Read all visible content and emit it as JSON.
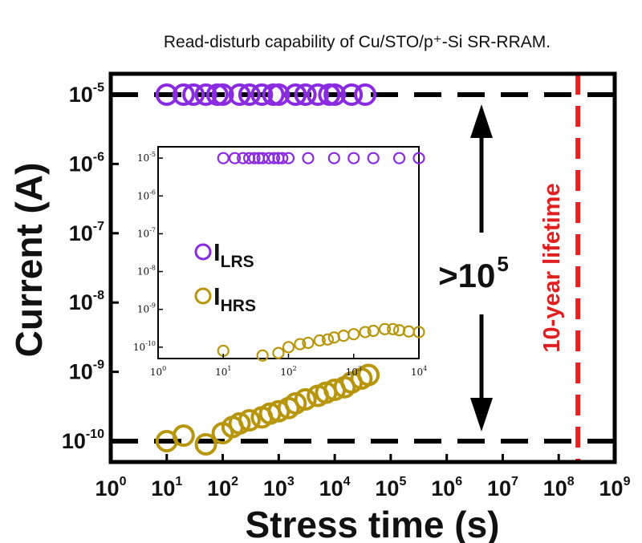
{
  "caption": "Read-disturb capability of Cu/STO/p⁺-Si SR-RRAM.",
  "chart_data": {
    "type": "scatter",
    "title": "",
    "xlabel": "Stress time (s)",
    "ylabel": "Current (A)",
    "xscale": "log",
    "yscale": "log",
    "xlim": [
      1,
      1000000000
    ],
    "ylim": [
      5e-11,
      2e-05
    ],
    "x_ticks": [
      {
        "base": "10",
        "exp": "0"
      },
      {
        "base": "10",
        "exp": "1"
      },
      {
        "base": "10",
        "exp": "2"
      },
      {
        "base": "10",
        "exp": "3"
      },
      {
        "base": "10",
        "exp": "4"
      },
      {
        "base": "10",
        "exp": "5"
      },
      {
        "base": "10",
        "exp": "6"
      },
      {
        "base": "10",
        "exp": "7"
      },
      {
        "base": "10",
        "exp": "8"
      },
      {
        "base": "10",
        "exp": "9"
      }
    ],
    "y_ticks": [
      {
        "base": "10",
        "exp": "-5"
      },
      {
        "base": "10",
        "exp": "-6"
      },
      {
        "base": "10",
        "exp": "-7"
      },
      {
        "base": "10",
        "exp": "-8"
      },
      {
        "base": "10",
        "exp": "-9"
      },
      {
        "base": "10",
        "exp": "-10"
      }
    ],
    "series": [
      {
        "name": "LRS",
        "color": "#8a2be2",
        "x": [
          10,
          20,
          30,
          50,
          80,
          100,
          200,
          300,
          500,
          800,
          1000,
          2000,
          3000,
          5000,
          8000,
          10000,
          20000,
          35000
        ],
        "y": [
          1e-05,
          1e-05,
          1e-05,
          1e-05,
          1e-05,
          1e-05,
          1e-05,
          1e-05,
          1e-05,
          1e-05,
          1e-05,
          1e-05,
          1e-05,
          1e-05,
          1e-05,
          1e-05,
          1e-05,
          1e-05
        ]
      },
      {
        "name": "HRS",
        "color": "#b8960c",
        "x": [
          10,
          20,
          50,
          100,
          150,
          200,
          300,
          500,
          700,
          1000,
          1500,
          2000,
          3000,
          5000,
          7000,
          10000,
          15000,
          20000,
          30000,
          40000
        ],
        "y": [
          1e-10,
          1.2e-10,
          9e-11,
          1.3e-10,
          1.6e-10,
          1.8e-10,
          2e-10,
          2.2e-10,
          2.5e-10,
          2.7e-10,
          3e-10,
          3.5e-10,
          4e-10,
          4.5e-10,
          5e-10,
          5.5e-10,
          6e-10,
          7e-10,
          8e-10,
          9e-10
        ]
      }
    ],
    "reference_lines": {
      "upper_level": 1e-05,
      "lower_level": 1e-10,
      "lifetime_x": 220000000
    },
    "annotations": {
      "ratio_base": ">10",
      "ratio_exp": "5",
      "lifetime": "10-year lifetime"
    },
    "inset": {
      "xlim": [
        1,
        10000
      ],
      "ylim": [
        5e-11,
        2e-05
      ],
      "x_ticks": [
        {
          "base": "10",
          "exp": "0"
        },
        {
          "base": "10",
          "exp": "1"
        },
        {
          "base": "10",
          "exp": "2"
        },
        {
          "base": "10",
          "exp": "3"
        },
        {
          "base": "10",
          "exp": "4"
        }
      ],
      "y_ticks": [
        {
          "base": "10",
          "exp": "-5"
        },
        {
          "base": "10",
          "exp": "-6"
        },
        {
          "base": "10",
          "exp": "-7"
        },
        {
          "base": "10",
          "exp": "-8"
        },
        {
          "base": "10",
          "exp": "-9"
        },
        {
          "base": "10",
          "exp": "-10"
        }
      ],
      "legend": [
        {
          "base": "I",
          "sub": "LRS",
          "color": "#8a2be2"
        },
        {
          "base": "I",
          "sub": "HRS",
          "color": "#b8960c"
        }
      ],
      "lrs_x": [
        10,
        15,
        20,
        25,
        30,
        35,
        40,
        50,
        60,
        70,
        80,
        100,
        200,
        500,
        1000,
        2000,
        5000,
        10000
      ],
      "hrs_x": [
        10,
        40,
        70,
        100,
        150,
        200,
        300,
        400,
        500,
        700,
        1000,
        1500,
        2000,
        3000,
        4000,
        5000,
        7000,
        10000
      ],
      "hrs_y": [
        8e-11,
        6e-11,
        7e-11,
        1e-10,
        1.2e-10,
        1.3e-10,
        1.5e-10,
        1.6e-10,
        1.8e-10,
        2e-10,
        2.2e-10,
        2.5e-10,
        2.7e-10,
        3e-10,
        3e-10,
        2.8e-10,
        2.6e-10,
        2.5e-10
      ]
    }
  }
}
